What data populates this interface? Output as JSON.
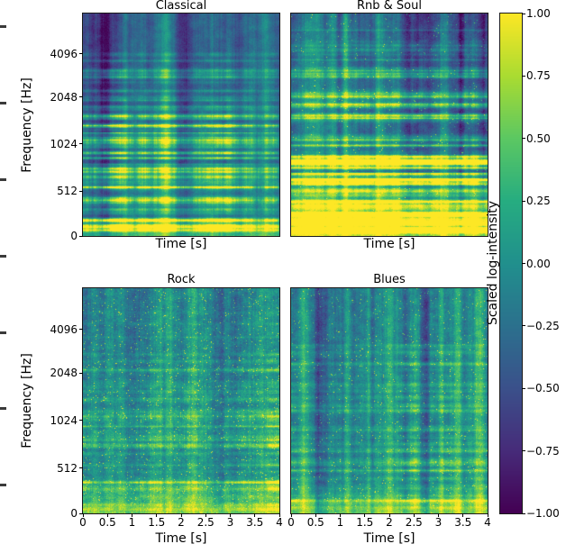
{
  "figure": {
    "background": "#ffffff"
  },
  "chart_data": {
    "type": "heatmap",
    "layout": "2x2 grid of audio spectrograms sharing one vertical colorbar on the right",
    "xlabel": "Time [s]",
    "ylabel": "Frequency [Hz]",
    "x_range": [
      0,
      4
    ],
    "x_ticks": [
      "0",
      "0.5",
      "1",
      "1.5",
      "2",
      "2.5",
      "3",
      "3.5",
      "4"
    ],
    "y_scale": "log-like (octave spaced ticks)",
    "y_ticks": [
      "0",
      "512",
      "1024",
      "2048",
      "4096"
    ],
    "subplots": [
      {
        "title": "Classical",
        "description": "dark blue background, faint horizontal harmonic striations, bright yellow bands in the low frequencies, vertical darker pause bands"
      },
      {
        "title": "Rnb & Soul",
        "description": "bright yellow low-frequency band with dense harmonic lines and bright vertical onsets over teal background"
      },
      {
        "title": "Rock",
        "description": "bright teal-green texture with yellow speckles and harmonic activity throughout"
      },
      {
        "title": "Blues",
        "description": "bright teal-green with strong vertical stripes and yellow low-frequency activity"
      }
    ],
    "colorbar": {
      "label": "Scaled log-intensity",
      "ticks": [
        "1.00",
        "0.75",
        "0.50",
        "0.25",
        "0.00",
        "−0.25",
        "−0.50",
        "−0.75",
        "−1.00"
      ],
      "range": [
        -1.0,
        1.0
      ],
      "colormap": "viridis",
      "colors": {
        "low": "#440154",
        "mid": "#21918c",
        "high": "#fde725"
      }
    }
  }
}
